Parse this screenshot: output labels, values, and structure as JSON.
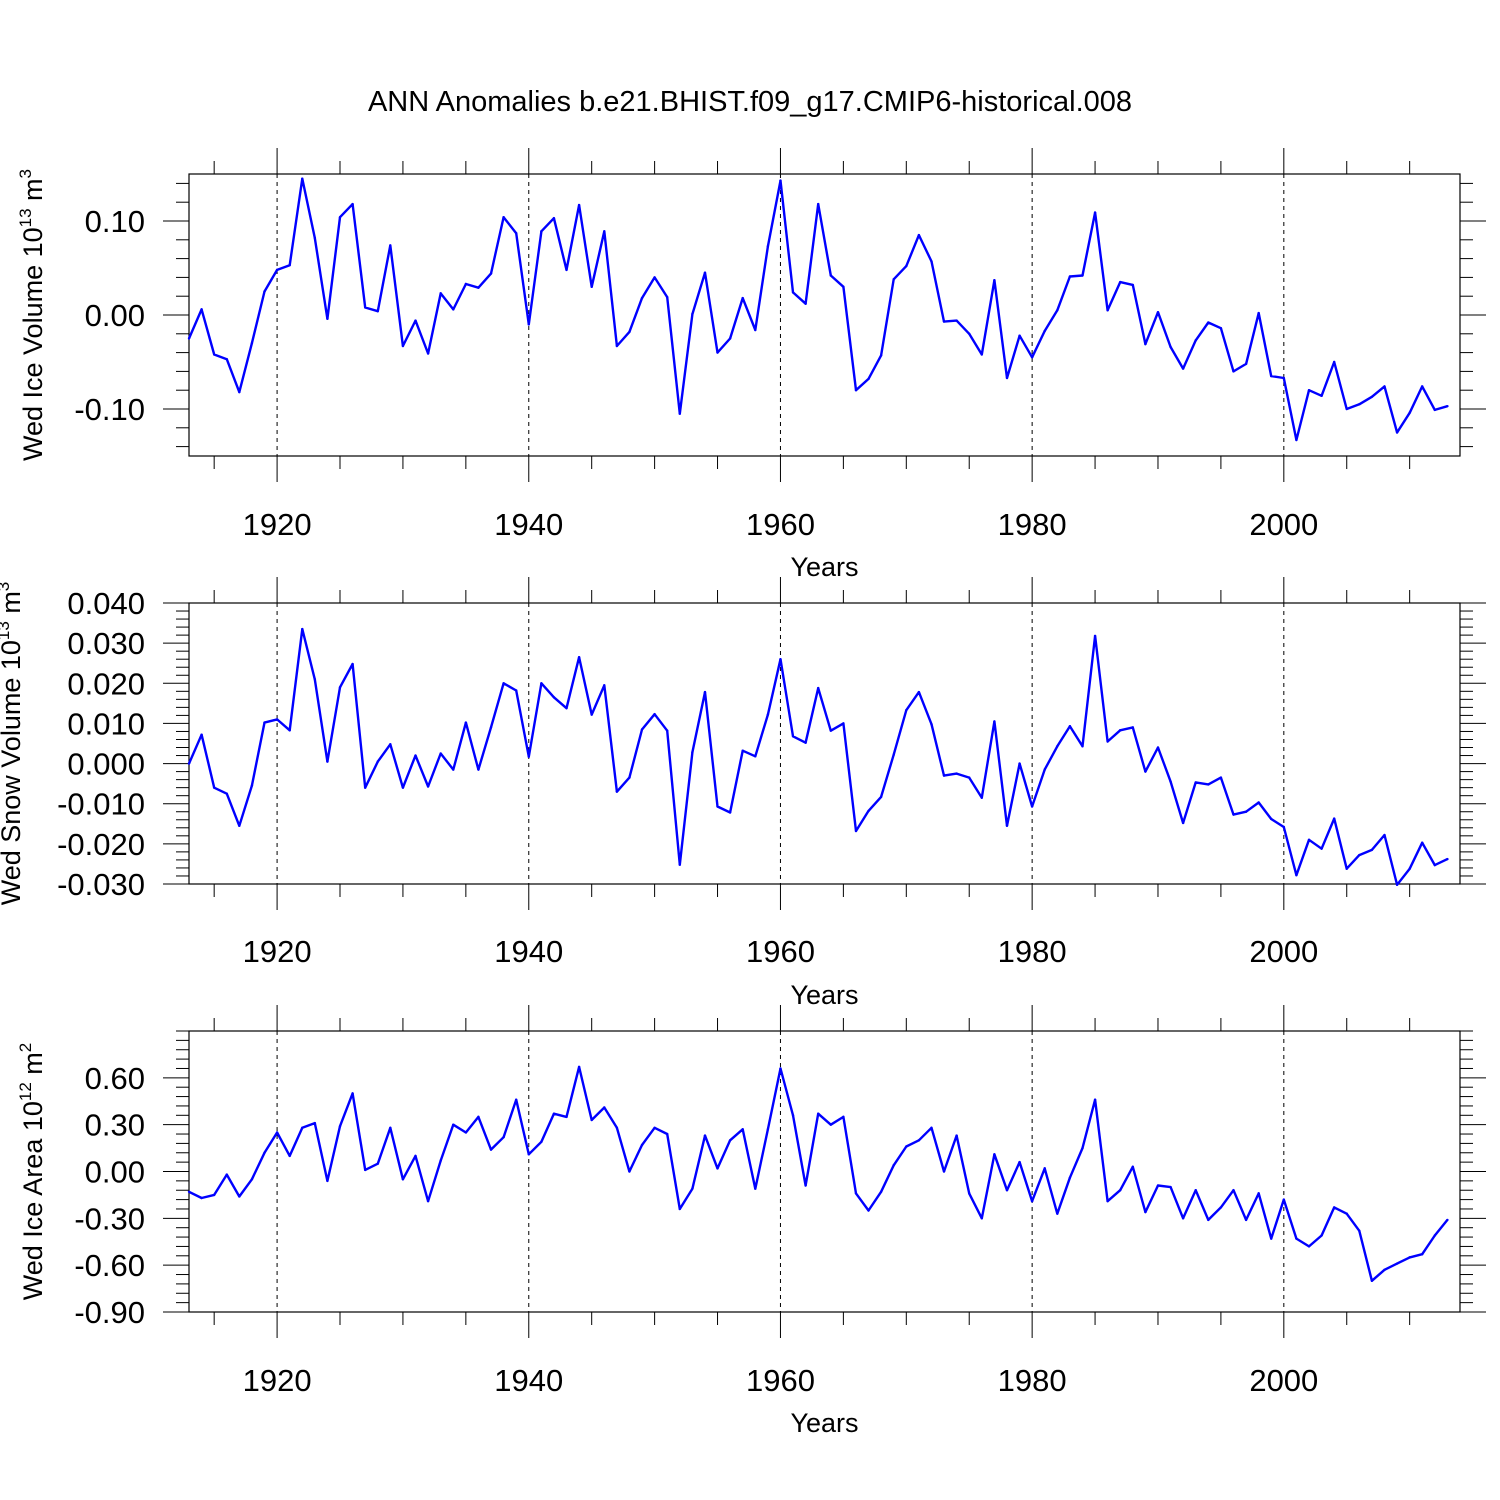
{
  "figure": {
    "title": "ANN Anomalies b.e21.BHIST.f09_g17.CMIP6-historical.008",
    "line_color": "#0000ff"
  },
  "chart_data": [
    {
      "type": "line",
      "name": "ice-volume",
      "ylabel": "Wed Ice Volume 10",
      "ylabel_exp": "13",
      "ylabel_unit": " m",
      "ylabel_unit_exp": "3",
      "xlabel": "Years",
      "xlim": [
        1913,
        2014
      ],
      "ylim": [
        -0.15,
        0.15
      ],
      "yticks": [
        -0.1,
        0.0,
        0.1
      ],
      "ytick_labels": [
        "-0.10",
        "0.00",
        "0.10"
      ],
      "xticks": [
        1920,
        1940,
        1960,
        1980,
        2000
      ],
      "xtick_labels": [
        "1920",
        "1940",
        "1960",
        "1980",
        "2000"
      ],
      "grid": "dashed vertical lines at major x ticks",
      "x_start": 1913,
      "values": [
        -0.025,
        0.006,
        -0.042,
        -0.047,
        -0.082,
        -0.03,
        0.025,
        0.048,
        0.053,
        0.145,
        0.082,
        -0.004,
        0.104,
        0.118,
        0.008,
        0.004,
        0.074,
        -0.033,
        -0.006,
        -0.041,
        0.023,
        0.006,
        0.033,
        0.029,
        0.044,
        0.104,
        0.087,
        -0.01,
        0.089,
        0.103,
        0.048,
        0.117,
        0.03,
        0.089,
        -0.033,
        -0.018,
        0.018,
        0.04,
        0.019,
        -0.105,
        0.001,
        0.045,
        -0.04,
        -0.025,
        0.018,
        -0.016,
        0.073,
        0.143,
        0.024,
        0.012,
        0.118,
        0.042,
        0.03,
        -0.08,
        -0.068,
        -0.043,
        0.038,
        0.052,
        0.085,
        0.057,
        -0.007,
        -0.006,
        -0.02,
        -0.042,
        0.037,
        -0.067,
        -0.022,
        -0.045,
        -0.017,
        0.005,
        0.041,
        0.042,
        0.109,
        0.005,
        0.035,
        0.032,
        -0.031,
        0.003,
        -0.034,
        -0.057,
        -0.027,
        -0.008,
        -0.014,
        -0.06,
        -0.052,
        0.002,
        -0.065,
        -0.067,
        -0.133,
        -0.08,
        -0.086,
        -0.05,
        -0.1,
        -0.095,
        -0.087,
        -0.076,
        -0.125,
        -0.104,
        -0.076,
        -0.101,
        -0.097
      ]
    },
    {
      "type": "line",
      "name": "snow-volume",
      "ylabel": "Wed Snow Volume 10",
      "ylabel_exp": "13",
      "ylabel_unit": " m",
      "ylabel_unit_exp": "3",
      "xlabel": "Years",
      "xlim": [
        1913,
        2014
      ],
      "ylim": [
        -0.03,
        0.04
      ],
      "yticks": [
        -0.03,
        -0.02,
        -0.01,
        0.0,
        0.01,
        0.02,
        0.03,
        0.04
      ],
      "ytick_labels": [
        "-0.030",
        "-0.020",
        "-0.010",
        "0.000",
        "0.010",
        "0.020",
        "0.030",
        "0.040"
      ],
      "xticks": [
        1920,
        1940,
        1960,
        1980,
        2000
      ],
      "xtick_labels": [
        "1920",
        "1940",
        "1960",
        "1980",
        "2000"
      ],
      "grid": "dashed vertical lines at major x ticks",
      "x_start": 1913,
      "values": [
        0.0,
        0.0072,
        -0.006,
        -0.0075,
        -0.0155,
        -0.0055,
        0.0102,
        0.011,
        0.0083,
        0.0335,
        0.021,
        0.0005,
        0.019,
        0.0248,
        -0.006,
        0.0005,
        0.0048,
        -0.006,
        0.002,
        -0.0057,
        0.0025,
        -0.0015,
        0.0102,
        -0.0015,
        0.009,
        0.02,
        0.0182,
        0.0017,
        0.02,
        0.0165,
        0.0138,
        0.0265,
        0.0122,
        0.0195,
        -0.007,
        -0.0035,
        0.0085,
        0.0123,
        0.0082,
        -0.0252,
        0.0028,
        0.0178,
        -0.0107,
        -0.0122,
        0.0032,
        0.0018,
        0.0122,
        0.026,
        0.0068,
        0.0052,
        0.0188,
        0.0082,
        0.01,
        -0.0168,
        -0.0118,
        -0.0083,
        0.0022,
        0.0133,
        0.0178,
        0.0098,
        -0.003,
        -0.0025,
        -0.0035,
        -0.0085,
        0.0105,
        -0.0155,
        0.0,
        -0.0107,
        -0.0015,
        0.0043,
        0.0093,
        0.0043,
        0.0318,
        0.0055,
        0.0083,
        0.009,
        -0.002,
        0.004,
        -0.0045,
        -0.0148,
        -0.0047,
        -0.0052,
        -0.0035,
        -0.0127,
        -0.012,
        -0.0097,
        -0.0138,
        -0.0158,
        -0.0278,
        -0.019,
        -0.0212,
        -0.0137,
        -0.0262,
        -0.0228,
        -0.0215,
        -0.0178,
        -0.0302,
        -0.0262,
        -0.0197,
        -0.0253,
        -0.0238
      ]
    },
    {
      "type": "line",
      "name": "ice-area",
      "ylabel": "Wed Ice Area 10",
      "ylabel_exp": "12",
      "ylabel_unit": " m",
      "ylabel_unit_exp": "2",
      "xlabel": "Years",
      "xlim": [
        1913,
        2014
      ],
      "ylim": [
        -0.9,
        0.9
      ],
      "yticks": [
        -0.9,
        -0.6,
        -0.3,
        0.0,
        0.3,
        0.6
      ],
      "ytick_labels": [
        "-0.90",
        "-0.60",
        "-0.30",
        "0.00",
        "0.30",
        "0.60"
      ],
      "xticks": [
        1920,
        1940,
        1960,
        1980,
        2000
      ],
      "xtick_labels": [
        "1920",
        "1940",
        "1960",
        "1980",
        "2000"
      ],
      "grid": "dashed vertical lines at major x ticks",
      "x_start": 1913,
      "values": [
        -0.13,
        -0.17,
        -0.15,
        -0.02,
        -0.16,
        -0.05,
        0.12,
        0.25,
        0.1,
        0.28,
        0.31,
        -0.06,
        0.29,
        0.5,
        0.01,
        0.05,
        0.28,
        -0.05,
        0.1,
        -0.19,
        0.07,
        0.3,
        0.25,
        0.35,
        0.14,
        0.22,
        0.46,
        0.11,
        0.19,
        0.37,
        0.35,
        0.67,
        0.33,
        0.41,
        0.28,
        0.0,
        0.17,
        0.28,
        0.24,
        -0.24,
        -0.11,
        0.23,
        0.02,
        0.2,
        0.27,
        -0.11,
        0.27,
        0.66,
        0.36,
        -0.09,
        0.37,
        0.3,
        0.35,
        -0.14,
        -0.25,
        -0.13,
        0.04,
        0.16,
        0.2,
        0.28,
        0.0,
        0.23,
        -0.14,
        -0.3,
        0.11,
        -0.12,
        0.06,
        -0.19,
        0.02,
        -0.27,
        -0.04,
        0.15,
        0.46,
        -0.19,
        -0.12,
        0.03,
        -0.26,
        -0.09,
        -0.1,
        -0.3,
        -0.12,
        -0.31,
        -0.23,
        -0.12,
        -0.31,
        -0.14,
        -0.43,
        -0.18,
        -0.43,
        -0.48,
        -0.41,
        -0.23,
        -0.27,
        -0.38,
        -0.7,
        -0.63,
        -0.59,
        -0.55,
        -0.53,
        -0.41,
        -0.31
      ]
    }
  ]
}
